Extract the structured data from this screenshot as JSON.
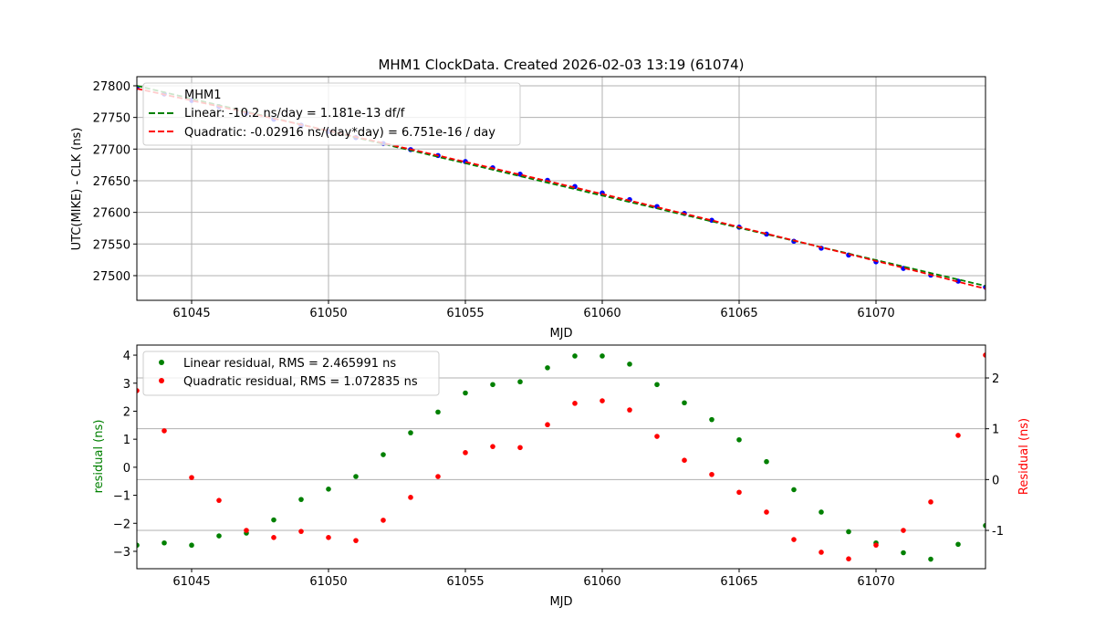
{
  "chart_data": [
    {
      "type": "line",
      "title": "MHM1 ClockData. Created 2026-02-03 13:19 (61074)",
      "xlabel": "MJD",
      "ylabel": "UTC(MIKE) - CLK (ns)",
      "xlim": [
        61043,
        61074
      ],
      "ylim": [
        27461,
        27814.4
      ],
      "xticks": [
        61045,
        61050,
        61055,
        61060,
        61065,
        61070
      ],
      "yticks": [
        27500,
        27550,
        27600,
        27650,
        27700,
        27750,
        27800
      ],
      "grid": true,
      "legend_position": "top-left",
      "x": [
        61043,
        61044,
        61045,
        61046,
        61047,
        61048,
        61049,
        61050,
        61051,
        61052,
        61053,
        61054,
        61055,
        61056,
        61057,
        61058,
        61059,
        61060,
        61061,
        61062,
        61063,
        61064,
        61065,
        61066,
        61067,
        61068,
        61069,
        61070,
        61071,
        61072,
        61073,
        61074
      ],
      "series": [
        {
          "name": "MHM1",
          "style": "points",
          "color": "#0000ff",
          "values": [
            27797.2,
            27787.1,
            27776.8,
            27767.0,
            27756.9,
            27747.1,
            27737.7,
            27727.8,
            27718.1,
            27708.7,
            27699.2,
            27689.8,
            27680.3,
            27670.4,
            27660.3,
            27650.6,
            27640.8,
            27630.6,
            27620.1,
            27609.2,
            27598.3,
            27587.5,
            27576.6,
            27565.6,
            27554.4,
            27543.4,
            27532.5,
            27521.9,
            27511.4,
            27500.9,
            27491.3,
            27481.7
          ]
        },
        {
          "name": "Linear: -10.2 ns/day = 1.181e-13 df/f",
          "style": "dashed",
          "color": "#008000",
          "fit": {
            "intercept": 27800.0,
            "slope": -10.2,
            "curvature": 0
          }
        },
        {
          "name": "Quadratic: -0.02916 ns/(day*day) = 6.751e-16 / day",
          "style": "dashed",
          "color": "#ff0000",
          "fit": {
            "intercept": 27795.5,
            "slope": -9.297,
            "curvature": -0.02916
          }
        }
      ]
    },
    {
      "type": "scatter",
      "xlabel": "MJD",
      "ylabel": "residual (ns)",
      "ylabel_right": "Residual (ns)",
      "xlim": [
        61043,
        61074
      ],
      "ylim": [
        -3.62,
        4.36
      ],
      "ylim_right": [
        -1.754,
        2.647
      ],
      "xticks": [
        61045,
        61050,
        61055,
        61060,
        61065,
        61070
      ],
      "yticks": [
        -3,
        -2,
        -1,
        0,
        1,
        2,
        3,
        4
      ],
      "yticks_right": [
        -1,
        0,
        1,
        2
      ],
      "grid": "horizontal (right axis)",
      "legend_position": "top-left",
      "x": [
        61043,
        61044,
        61045,
        61046,
        61047,
        61048,
        61049,
        61050,
        61051,
        61052,
        61053,
        61054,
        61055,
        61056,
        61057,
        61058,
        61059,
        61060,
        61061,
        61062,
        61063,
        61064,
        61065,
        61066,
        61067,
        61068,
        61069,
        61070,
        61071,
        61072,
        61073,
        61074
      ],
      "series": [
        {
          "name": "Linear residual, RMS = 2.465991 ns",
          "axis": "left",
          "color": "#008000",
          "values": [
            -2.78,
            -2.7,
            -2.78,
            -2.45,
            -2.35,
            -1.88,
            -1.15,
            -0.78,
            -0.33,
            0.45,
            1.23,
            1.97,
            2.65,
            2.95,
            3.05,
            3.55,
            3.97,
            3.97,
            3.68,
            2.95,
            2.3,
            1.7,
            0.98,
            0.2,
            -0.8,
            -1.6,
            -2.3,
            -2.7,
            -3.05,
            -3.28,
            -2.75,
            -2.08
          ]
        },
        {
          "name": "Quadratic residual, RMS = 1.072835 ns",
          "axis": "right",
          "color": "#ff0000",
          "values": [
            1.75,
            0.96,
            0.04,
            -0.41,
            -1.0,
            -1.14,
            -1.02,
            -1.14,
            -1.2,
            -0.8,
            -0.35,
            0.06,
            0.53,
            0.65,
            0.63,
            1.08,
            1.5,
            1.55,
            1.37,
            0.85,
            0.38,
            0.1,
            -0.25,
            -0.64,
            -1.18,
            -1.43,
            -1.56,
            -1.29,
            -1.0,
            -0.44,
            0.87,
            2.45
          ]
        }
      ]
    }
  ]
}
